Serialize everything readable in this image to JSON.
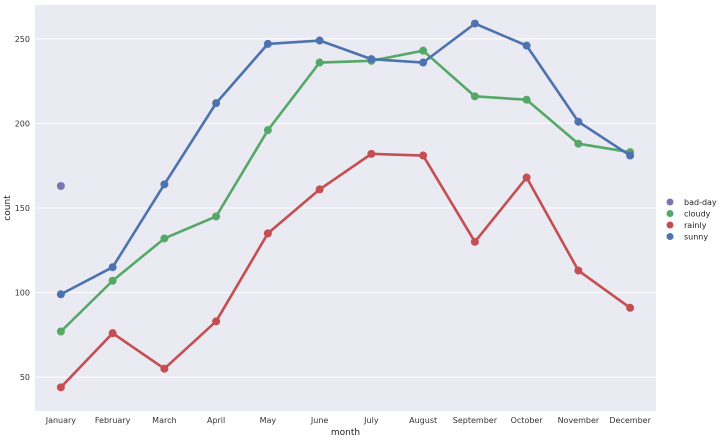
{
  "chart_data": {
    "type": "line",
    "title": "",
    "xlabel": "month",
    "ylabel": "count",
    "categories": [
      "January",
      "February",
      "March",
      "April",
      "May",
      "June",
      "July",
      "August",
      "September",
      "October",
      "November",
      "December"
    ],
    "ylim": [
      30,
      270
    ],
    "yticks": [
      50,
      100,
      150,
      200,
      250
    ],
    "grid": true,
    "legend_position": "right-center",
    "series": [
      {
        "name": "bad-day",
        "color": "#8172b2",
        "values": [
          163,
          null,
          null,
          null,
          null,
          null,
          null,
          null,
          null,
          null,
          null,
          null
        ]
      },
      {
        "name": "cloudy",
        "color": "#55a868",
        "values": [
          77,
          107,
          132,
          145,
          196,
          236,
          237,
          243,
          216,
          214,
          188,
          183
        ]
      },
      {
        "name": "rainly",
        "color": "#c44e52",
        "values": [
          44,
          76,
          55,
          83,
          135,
          161,
          182,
          181,
          130,
          168,
          113,
          91
        ]
      },
      {
        "name": "sunny",
        "color": "#4c72b0",
        "values": [
          99,
          115,
          164,
          212,
          247,
          249,
          238,
          236,
          259,
          246,
          201,
          181
        ]
      }
    ]
  },
  "style": {
    "plot_background": "#eaeaf2",
    "grid_color": "#ffffff"
  }
}
